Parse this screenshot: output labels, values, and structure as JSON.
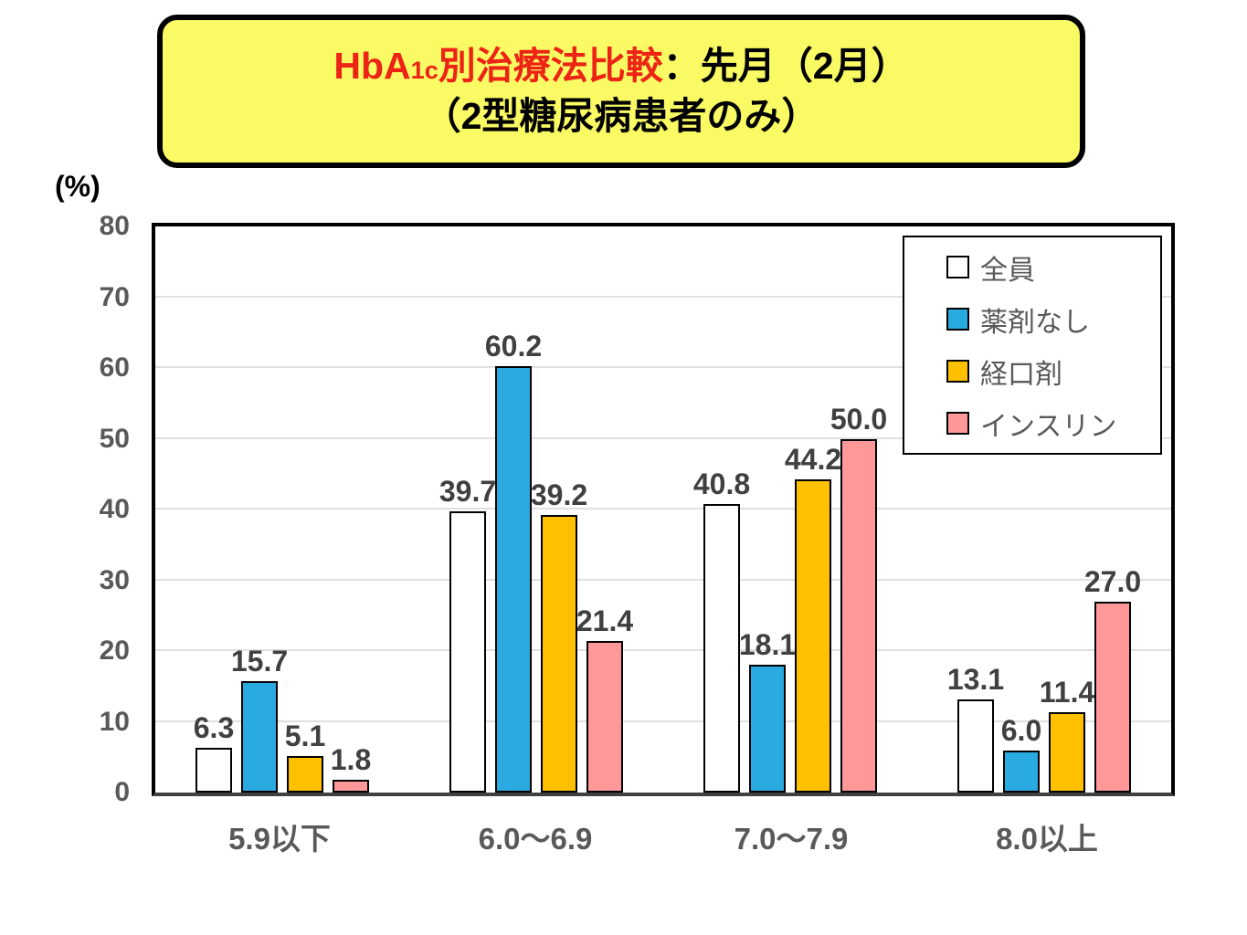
{
  "title": {
    "red_prefix": "HbA",
    "red_sub": "1c",
    "red_suffix": "別治療法比較",
    "black_suffix": "：先月（2月）",
    "line2": "（2型糖尿病患者のみ）"
  },
  "y_axis": {
    "unit_label": "(%)",
    "ticks": [
      0,
      10,
      20,
      30,
      40,
      50,
      60,
      70,
      80
    ]
  },
  "chart_data": {
    "type": "bar",
    "title": "HbA1c別治療法比較：先月（2月）（2型糖尿病患者のみ）",
    "categories": [
      "5.9以下",
      "6.0～6.9",
      "7.0～7.9",
      "8.0以上"
    ],
    "series": [
      {
        "name": "全員",
        "color": "#FFFFFF",
        "values": [
          6.3,
          39.7,
          40.8,
          13.1
        ]
      },
      {
        "name": "薬剤なし",
        "color": "#29ABE2",
        "values": [
          15.7,
          60.2,
          18.1,
          6.0
        ]
      },
      {
        "name": "経口剤",
        "color": "#FFC000",
        "values": [
          5.1,
          39.2,
          44.2,
          11.4
        ]
      },
      {
        "name": "インスリン",
        "color": "#FF9999",
        "values": [
          1.8,
          21.4,
          50.0,
          27.0
        ]
      }
    ],
    "ylabel": "(%)",
    "ylim": [
      0,
      80
    ],
    "grid": true,
    "legend_position": "top-right-inside",
    "data_label_format": "one-decimal"
  },
  "colors": {
    "title_red": "#EC2315",
    "title_box_bg": "#FAFA64",
    "title_box_border": "#000000",
    "axis_label": "#595959",
    "data_label": "#404040",
    "gridline": "#E0E0E0",
    "plot_border": "#000000",
    "legend_text": "#595959",
    "background": "#FFFFFF"
  }
}
